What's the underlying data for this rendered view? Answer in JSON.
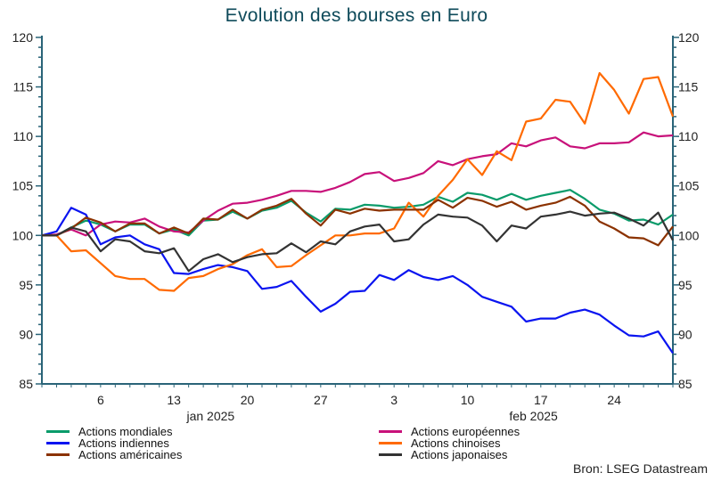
{
  "chart_data": {
    "type": "line",
    "title": "Evolution des bourses en Euro",
    "source": "Bron: LSEG Datastream",
    "ylim": [
      85,
      120
    ],
    "yticks": [
      85,
      90,
      95,
      100,
      105,
      110,
      115,
      120
    ],
    "xtick_labels": [
      "6",
      "13",
      "20",
      "27",
      "3",
      "10",
      "17",
      "24"
    ],
    "xtick_index": [
      4,
      9,
      14,
      19,
      24,
      29,
      34,
      39
    ],
    "month_labels": [
      "jan 2025",
      "feb 2025"
    ],
    "grid": false,
    "legend_position": "bottom",
    "n_points": 44,
    "series": [
      {
        "name": "Actions mondiales",
        "color": "#0a9b6a",
        "values": [
          100,
          100,
          100.8,
          101.5,
          101.1,
          100.4,
          101.1,
          101.1,
          100.2,
          100.6,
          100.0,
          101.5,
          101.6,
          102.4,
          101.7,
          102.5,
          102.8,
          103.5,
          102.3,
          101.4,
          102.7,
          102.6,
          103.1,
          103.0,
          102.8,
          102.9,
          103.1,
          103.9,
          103.4,
          104.3,
          104.1,
          103.6,
          104.2,
          103.6,
          104.0,
          104.3,
          104.6,
          103.7,
          102.6,
          102.2,
          101.5,
          101.6,
          101.1,
          102.1
        ]
      },
      {
        "name": "Actions européennes",
        "color": "#c8117a",
        "values": [
          100,
          100.1,
          100.6,
          100.0,
          101.1,
          101.4,
          101.3,
          101.7,
          100.9,
          100.4,
          100.3,
          101.5,
          102.5,
          103.2,
          103.3,
          103.6,
          104.0,
          104.5,
          104.5,
          104.4,
          104.8,
          105.4,
          106.2,
          106.4,
          105.5,
          105.8,
          106.3,
          107.5,
          107.1,
          107.7,
          108.0,
          108.2,
          109.3,
          109.0,
          109.6,
          109.9,
          109.0,
          108.8,
          109.3,
          109.3,
          109.4,
          110.4,
          110.0,
          110.1
        ]
      },
      {
        "name": "Actions indiennes",
        "color": "#0a14f0",
        "values": [
          100,
          100.4,
          102.8,
          102.1,
          99.1,
          99.8,
          100.0,
          99.1,
          98.6,
          96.2,
          96.1,
          96.6,
          97.0,
          96.8,
          96.4,
          94.6,
          94.8,
          95.4,
          93.8,
          92.3,
          93.1,
          94.3,
          94.4,
          96.0,
          95.5,
          96.5,
          95.8,
          95.5,
          95.9,
          95.0,
          93.8,
          93.3,
          92.8,
          91.3,
          91.6,
          91.6,
          92.2,
          92.5,
          92.0,
          90.9,
          89.9,
          89.8,
          90.3,
          88.1
        ]
      },
      {
        "name": "Actions chinoises",
        "color": "#ff6a00",
        "values": [
          100,
          100,
          98.4,
          98.5,
          97.2,
          95.9,
          95.6,
          95.6,
          94.5,
          94.4,
          95.7,
          95.9,
          96.6,
          97.1,
          98.0,
          98.6,
          96.8,
          96.9,
          98.0,
          99.0,
          100.0,
          100.0,
          100.2,
          100.2,
          100.7,
          103.3,
          101.9,
          104.0,
          105.6,
          107.7,
          106.1,
          108.5,
          107.6,
          111.5,
          111.8,
          113.7,
          113.5,
          111.3,
          116.4,
          114.7,
          112.3,
          115.8,
          116.0,
          112.0
        ]
      },
      {
        "name": "Actions américaines",
        "color": "#8b3200",
        "values": [
          100,
          100,
          100.7,
          101.8,
          101.3,
          100.4,
          101.2,
          101.2,
          100.2,
          100.8,
          100.2,
          101.7,
          101.6,
          102.6,
          101.7,
          102.6,
          103.0,
          103.7,
          102.2,
          101.0,
          102.6,
          102.2,
          102.7,
          102.5,
          102.6,
          102.6,
          102.6,
          103.6,
          102.8,
          103.8,
          103.5,
          102.9,
          103.4,
          102.6,
          103.0,
          103.3,
          103.9,
          103.0,
          101.4,
          100.7,
          99.8,
          99.7,
          99.0,
          100.9
        ]
      },
      {
        "name": "Actions japonaises",
        "color": "#333333",
        "values": [
          100,
          100,
          100.8,
          100.4,
          98.4,
          99.6,
          99.4,
          98.4,
          98.2,
          98.7,
          96.4,
          97.6,
          98.1,
          97.3,
          97.8,
          98.1,
          98.2,
          99.2,
          98.3,
          99.4,
          99.1,
          100.4,
          100.9,
          101.1,
          99.4,
          99.6,
          101.1,
          102.1,
          101.9,
          101.8,
          101.0,
          99.4,
          101.0,
          100.7,
          101.9,
          102.1,
          102.4,
          102.0,
          102.2,
          102.3,
          101.7,
          101.0,
          102.3,
          99.5
        ]
      }
    ]
  }
}
